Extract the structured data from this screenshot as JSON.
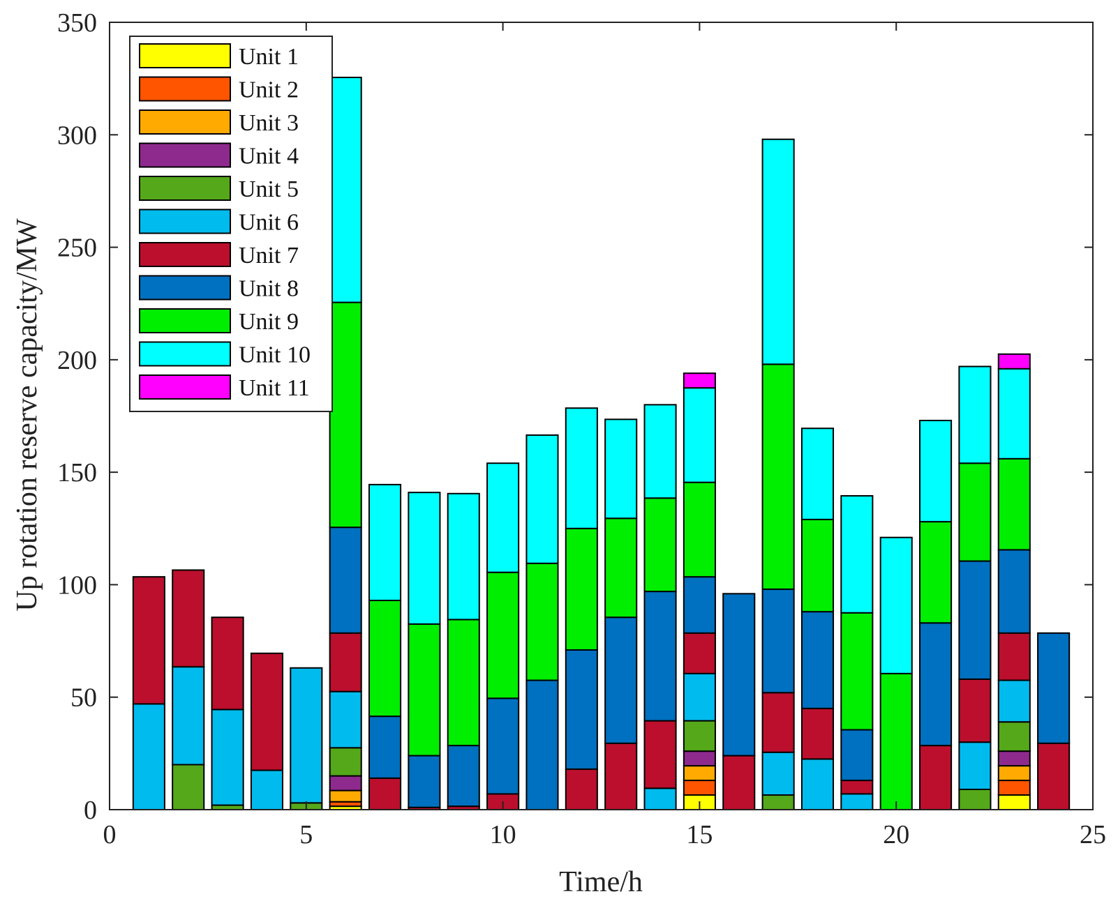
{
  "chart_data": {
    "type": "bar",
    "stacked": true,
    "title": "",
    "xlabel": "Time/h",
    "ylabel": "Up rotation reserve capacity/MW",
    "xlim": [
      0,
      25
    ],
    "ylim": [
      0,
      350
    ],
    "xticks": [
      0,
      5,
      10,
      15,
      20,
      25
    ],
    "yticks": [
      0,
      50,
      100,
      150,
      200,
      250,
      300,
      350
    ],
    "legend_position": "top-left",
    "x": [
      1,
      2,
      3,
      4,
      5,
      6,
      7,
      8,
      9,
      10,
      11,
      12,
      13,
      14,
      15,
      16,
      17,
      18,
      19,
      20,
      21,
      22,
      23,
      24
    ],
    "series": [
      {
        "name": "Unit 1",
        "color": "#ffff00",
        "values": [
          0,
          0,
          0,
          0,
          0,
          1.5,
          0,
          0,
          0,
          0,
          0,
          0,
          0,
          0,
          6.5,
          0,
          0,
          0,
          0,
          0,
          0,
          0,
          6.5,
          0
        ]
      },
      {
        "name": "Unit 2",
        "color": "#ff5500",
        "values": [
          0,
          0,
          0,
          0,
          0,
          2,
          0,
          0,
          0,
          0,
          0,
          0,
          0,
          0,
          6.5,
          0,
          0,
          0,
          0,
          0,
          0,
          0,
          6.5,
          0
        ]
      },
      {
        "name": "Unit 3",
        "color": "#ffaa00",
        "values": [
          0,
          0,
          0,
          0,
          0,
          5,
          0,
          0,
          0,
          0,
          0,
          0,
          0,
          0,
          6.5,
          0,
          0,
          0,
          0,
          0,
          0,
          0,
          6.5,
          0
        ]
      },
      {
        "name": "Unit 4",
        "color": "#8e2a8e",
        "values": [
          0,
          0,
          0,
          0,
          0,
          6.5,
          0,
          0,
          0,
          0,
          0,
          0,
          0,
          0,
          6.5,
          0,
          0,
          0,
          0,
          0,
          0,
          0,
          6.5,
          0
        ]
      },
      {
        "name": "Unit 5",
        "color": "#55a81a",
        "values": [
          0,
          20,
          2,
          0,
          3,
          12.5,
          0,
          0,
          0,
          0,
          0,
          0,
          0,
          0,
          13.5,
          0,
          6.5,
          0,
          0,
          0,
          0,
          9,
          13,
          0
        ]
      },
      {
        "name": "Unit 6",
        "color": "#00bbee",
        "values": [
          47,
          43.5,
          42.5,
          17.5,
          60,
          25,
          0,
          0,
          0,
          0,
          0,
          0,
          0,
          9.5,
          21,
          0,
          19,
          22.5,
          7,
          0,
          0,
          21,
          18.5,
          0
        ]
      },
      {
        "name": "Unit 7",
        "color": "#bb0f2d",
        "values": [
          56.5,
          43,
          41,
          52,
          0,
          26,
          14,
          1,
          1.5,
          7,
          0,
          18,
          29.5,
          30,
          18,
          24,
          26.5,
          22.5,
          6,
          0,
          28.5,
          28,
          21,
          29.5
        ]
      },
      {
        "name": "Unit 8",
        "color": "#0070c0",
        "values": [
          0,
          0,
          0,
          0,
          0,
          47,
          27.5,
          23,
          27,
          42.5,
          57.5,
          53,
          56,
          57.5,
          25,
          72,
          46,
          43,
          22.5,
          0,
          54.5,
          52.5,
          37,
          49
        ]
      },
      {
        "name": "Unit 9",
        "color": "#00ee00",
        "values": [
          0,
          0,
          0,
          0,
          0,
          100,
          51.5,
          58.5,
          56,
          56,
          52,
          54,
          44,
          41.5,
          42,
          0,
          100,
          41,
          52,
          60.5,
          45,
          43.5,
          40.5,
          0
        ]
      },
      {
        "name": "Unit 10",
        "color": "#00ffff",
        "values": [
          0,
          0,
          0,
          0,
          0,
          100,
          51.5,
          58.5,
          56,
          48.5,
          57,
          53.5,
          44,
          41.5,
          42,
          0,
          100,
          40.5,
          52,
          60.5,
          45,
          43,
          40,
          0
        ]
      },
      {
        "name": "Unit 11",
        "color": "#ff00ff",
        "values": [
          0,
          0,
          0,
          0,
          0,
          0,
          0,
          0,
          0,
          0,
          0,
          0,
          0,
          0,
          6.5,
          0,
          0,
          0,
          0,
          0,
          0,
          0,
          6.5,
          0
        ]
      }
    ]
  }
}
